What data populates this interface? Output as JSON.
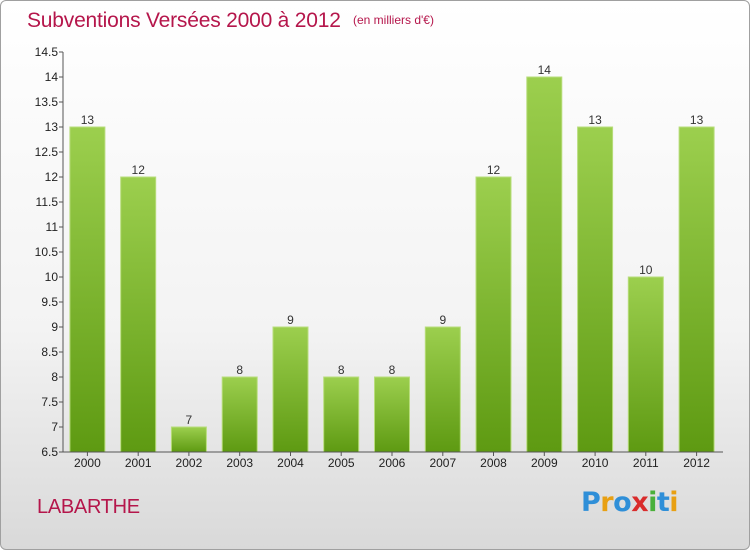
{
  "header": {
    "title": "Subventions Versées 2000 à 2012",
    "unit_note": "(en milliers d'€)"
  },
  "footer": {
    "commune": "LABARTHE",
    "logo_text": [
      "P",
      "r",
      "o",
      "x",
      "i",
      "t",
      "i"
    ]
  },
  "colors": {
    "title": "#b5164b",
    "bar_top": "#9ccf4e",
    "bar_bottom": "#5e9a12"
  },
  "chart_data": {
    "type": "bar",
    "title": "Subventions Versées 2000 à 2012",
    "xlabel": "",
    "ylabel": "",
    "categories": [
      "2000",
      "2001",
      "2002",
      "2003",
      "2004",
      "2005",
      "2006",
      "2007",
      "2008",
      "2009",
      "2010",
      "2011",
      "2012"
    ],
    "values": [
      13,
      12,
      7,
      8,
      9,
      8,
      8,
      9,
      12,
      14,
      13,
      10,
      13
    ],
    "ylim": [
      6.5,
      14.5
    ],
    "yticks": [
      "6.5",
      "7",
      "7.5",
      "8",
      "8.5",
      "9",
      "9.5",
      "10",
      "10.5",
      "11",
      "11.5",
      "12",
      "12.5",
      "13",
      "13.5",
      "14",
      "14.5"
    ],
    "grid": false,
    "legend": "none"
  }
}
